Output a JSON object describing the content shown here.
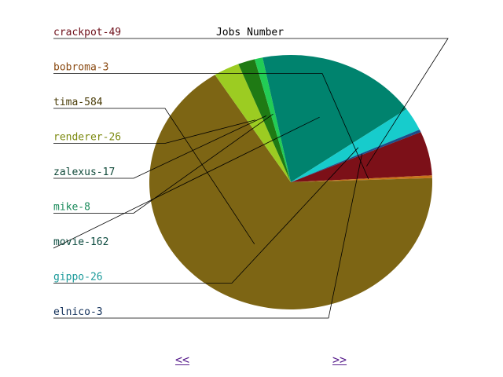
{
  "chart_data": {
    "type": "pie",
    "title": "Jobs Number",
    "legend_placement": "left",
    "slices": [
      {
        "label": "crackpot-49",
        "value": 49,
        "color": "#7c1018",
        "label_color": "#6e0f1a"
      },
      {
        "label": "bobroma-3",
        "value": 3,
        "color": "#c7741b",
        "label_color": "#8a4a12"
      },
      {
        "label": "tima-584",
        "value": 584,
        "color": "#7d6514",
        "label_color": "#4a3c08"
      },
      {
        "label": "renderer-26",
        "value": 26,
        "color": "#9ccc22",
        "label_color": "#7c8a10"
      },
      {
        "label": "zalexus-17",
        "value": 17,
        "color": "#1f7a14",
        "label_color": "#114a3a"
      },
      {
        "label": "mike-8",
        "value": 8,
        "color": "#22cc55",
        "label_color": "#1a8a5a"
      },
      {
        "label": "movie-162",
        "value": 162,
        "color": "#00836e",
        "label_color": "#0b4a3e"
      },
      {
        "label": "gippo-26",
        "value": 26,
        "color": "#17cccc",
        "label_color": "#1a9a9a"
      },
      {
        "label": "elnico-3",
        "value": 3,
        "color": "#1a4e8a",
        "label_color": "#12305a"
      }
    ]
  },
  "nav": {
    "prev_label": "<<",
    "next_label": ">>"
  }
}
